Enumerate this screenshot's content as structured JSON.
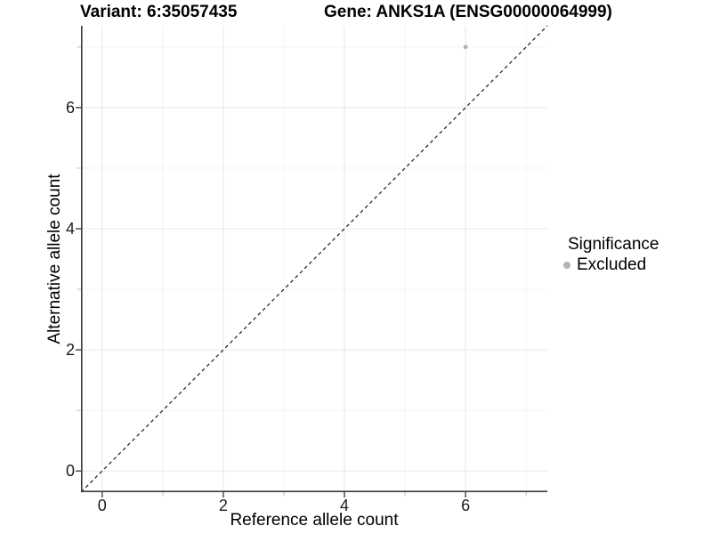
{
  "figure": {
    "title_left": "Variant: 6:35057435",
    "title_right": "Gene: ANKS1A (ENSG00000064999)"
  },
  "chart_data": {
    "type": "scatter",
    "title": "Variant: 6:35057435 — Gene: ANKS1A (ENSG00000064999)",
    "xlabel": "Reference allele count",
    "ylabel": "Alternative allele count",
    "xlim": [
      -0.35,
      7.35
    ],
    "ylim": [
      -0.35,
      7.35
    ],
    "x_ticks": [
      0,
      2,
      4,
      6
    ],
    "y_ticks": [
      0,
      2,
      4,
      6
    ],
    "x_minor_ticks": [
      1,
      3,
      5,
      7
    ],
    "y_minor_ticks": [
      1,
      3,
      5,
      7
    ],
    "grid": "on",
    "series": [
      {
        "name": "Excluded",
        "color": "#b3b3b3",
        "points": [
          {
            "x": 6,
            "y": 7
          }
        ]
      }
    ],
    "reference_line": {
      "type": "identity",
      "slope": 1,
      "intercept": 0,
      "style": "dashed",
      "color": "#1a1a1a"
    },
    "legend": {
      "title": "Significance",
      "position": "right",
      "entries": [
        {
          "label": "Excluded",
          "color": "#b3b3b3"
        }
      ]
    }
  },
  "colors": {
    "background": "#ffffff",
    "grid_major": "#e8e8e8",
    "grid_minor": "#f4f4f4",
    "axis_line": "#3d3d3d",
    "tick_mark_major": "#333333",
    "tick_mark_minor": "#bbbbbb",
    "tick_label": "#1c1c1c",
    "point": "#b3b3b3"
  }
}
